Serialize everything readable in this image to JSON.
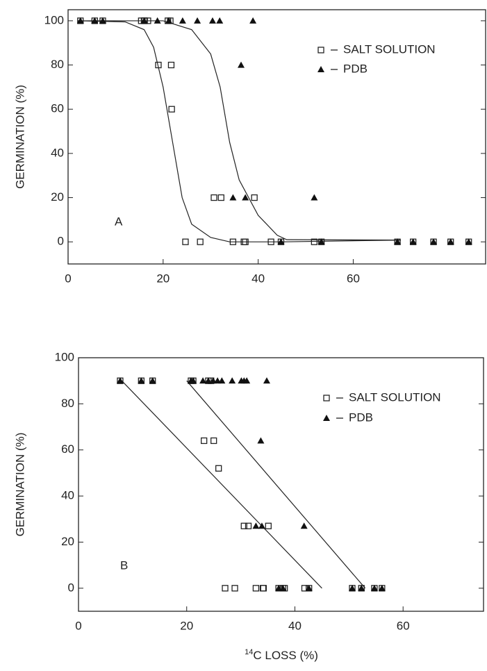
{
  "chart_data": [
    {
      "type": "scatter",
      "ylabel": "GERMINATION (%)",
      "annotation": "A",
      "xlim": [
        0,
        88
      ],
      "ylim": [
        -10,
        105
      ],
      "xticks": [
        0,
        20,
        40,
        60
      ],
      "yticks": [
        0,
        20,
        40,
        60,
        80,
        100
      ],
      "series": [
        {
          "name": "SALT SOLUTION",
          "marker": "square",
          "color": "#222222",
          "x": [
            2.6,
            5.6,
            7.3,
            15.4,
            16,
            16.1,
            16.8,
            21,
            21.5,
            19,
            21.7,
            21.8,
            30.7,
            32.2,
            39.2,
            24.7,
            27.8,
            34.7,
            37,
            37.3,
            42.7,
            44.8,
            51.8,
            53.3,
            69.3,
            72.6,
            76.9,
            80.5,
            84.3
          ],
          "values": [
            100,
            100,
            100,
            100,
            100,
            100,
            100,
            100,
            100,
            80,
            80,
            60,
            20,
            20,
            20,
            0,
            0,
            0,
            0,
            0,
            0,
            0,
            0,
            0,
            0,
            0,
            0,
            0,
            0
          ]
        },
        {
          "name": "PDB",
          "marker": "triangle",
          "color": "#111111",
          "x": [
            2.6,
            5.6,
            7.3,
            16,
            18.8,
            21.2,
            24.1,
            27.2,
            30.4,
            31.9,
            38.9,
            36.4,
            34.7,
            37.3,
            51.8,
            44.8,
            53.3,
            69.3,
            72.6,
            76.9,
            80.5,
            84.3
          ],
          "values": [
            100,
            100,
            100,
            100,
            100,
            100,
            100,
            100,
            100,
            100,
            100,
            80,
            20,
            20,
            20,
            0,
            0,
            0,
            0,
            0,
            0,
            0
          ]
        }
      ],
      "fits": [
        {
          "color": "#222222",
          "x": [
            2,
            12,
            16,
            18,
            20,
            22,
            24,
            26,
            30,
            34,
            45,
            70
          ],
          "values": [
            100,
            99.5,
            96,
            88,
            70,
            45,
            20,
            8,
            2,
            0,
            0,
            0.8
          ]
        },
        {
          "color": "#222222",
          "x": [
            2,
            20,
            26,
            30,
            32,
            34,
            36,
            40,
            44,
            46,
            70
          ],
          "values": [
            100,
            100,
            96,
            85,
            70,
            45,
            28,
            12,
            3,
            1,
            0.8
          ]
        }
      ]
    },
    {
      "type": "scatter",
      "ylabel": "GERMINATION (%)",
      "annotation": "B",
      "xlabel_sup": "14",
      "xlabel": "C LOSS (%)",
      "xlim": [
        0,
        75
      ],
      "ylim": [
        -10,
        100
      ],
      "xticks": [
        0,
        20,
        40,
        60
      ],
      "yticks": [
        0,
        20,
        40,
        60,
        80,
        100
      ],
      "series": [
        {
          "name": "SALT SOLUTION",
          "marker": "square",
          "color": "#222222",
          "x": [
            7.7,
            11.6,
            13.7,
            20.8,
            21.2,
            24,
            24.5,
            23.2,
            25,
            25.9,
            30.6,
            31.4,
            35.1,
            27.1,
            28.9,
            32.8,
            34.1,
            34.2,
            37,
            37.8,
            38.1,
            41.8,
            42.6,
            50.6,
            52.3,
            54.7,
            56.1
          ],
          "values": [
            90,
            90,
            90,
            90,
            90,
            90,
            90,
            64,
            64,
            52,
            27,
            27,
            27,
            0,
            0,
            0,
            0,
            0,
            0,
            0,
            0,
            0,
            0,
            0,
            0,
            0,
            0
          ]
        },
        {
          "name": "PDB",
          "marker": "triangle",
          "color": "#111111",
          "x": [
            7.7,
            11.6,
            13.7,
            20.8,
            21.2,
            23,
            24,
            24.9,
            25.7,
            26.5,
            28.4,
            30.1,
            30.6,
            31.1,
            34.8,
            33.7,
            32.8,
            33.9,
            41.7,
            37,
            37.8,
            42.6,
            50.6,
            52.3,
            54.7,
            56.1
          ],
          "values": [
            90,
            90,
            90,
            90,
            90,
            90,
            90,
            90,
            90,
            90,
            90,
            90,
            90,
            90,
            90,
            64,
            27,
            27,
            27,
            0,
            0,
            0,
            0,
            0,
            0,
            0
          ]
        }
      ],
      "fits": [
        {
          "color": "#222222",
          "x": [
            8,
            45
          ],
          "values": [
            90,
            0
          ]
        },
        {
          "color": "#222222",
          "x": [
            20,
            53
          ],
          "values": [
            90,
            0
          ]
        }
      ]
    }
  ]
}
